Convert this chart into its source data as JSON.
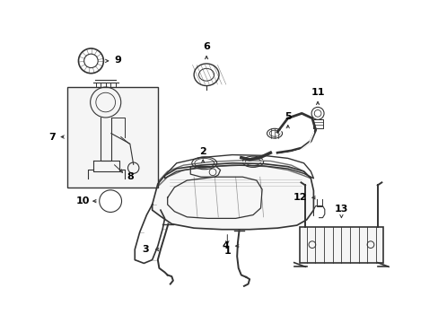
{
  "background_color": "#ffffff",
  "line_color": "#333333",
  "text_color": "#000000",
  "fig_width": 4.89,
  "fig_height": 3.6,
  "dpi": 100
}
